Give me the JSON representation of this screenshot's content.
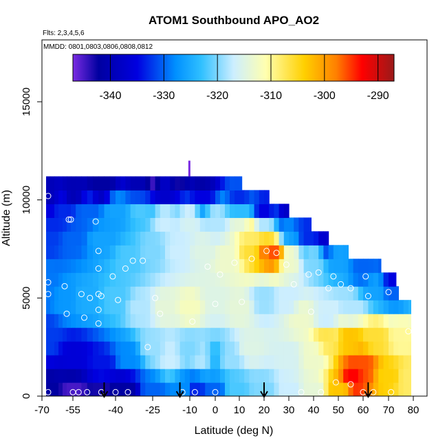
{
  "chart_data": {
    "type": "heatmap",
    "title": "ATOM1 Southbound APO_AO2",
    "annotations": [
      "Flts: 2,3,4,5,6",
      "MMDD: 0801,0803,0806,0808,0812"
    ],
    "xlabel": "Latitude (deg N)",
    "ylabel": "Altitude (m)",
    "xlim": [
      -70,
      80
    ],
    "ylim": [
      0,
      17500
    ],
    "x_ticks": [
      -70,
      -55,
      -40,
      -25,
      -10,
      0,
      10,
      20,
      30,
      40,
      50,
      60,
      70,
      80
    ],
    "x_tick_labels": [
      "-70",
      "-55",
      "-40",
      "-25",
      "-10",
      "0",
      "10",
      "20",
      "30",
      "40",
      "50",
      "60",
      "70",
      "80"
    ],
    "x_tick_labels_drawn_offset": [
      -70,
      -55,
      -40,
      -25,
      -10,
      0,
      10,
      20,
      30,
      40,
      50,
      60,
      70,
      80
    ],
    "y_ticks": [
      0,
      5000,
      10000,
      15000
    ],
    "y_tick_labels": [
      "0",
      "5000",
      "10000",
      "15000"
    ],
    "colorbar": {
      "range": [
        -347,
        -287
      ],
      "ticks": [
        -340,
        -330,
        -320,
        -310,
        -300,
        -290
      ],
      "tick_labels": [
        "-340",
        "-330",
        "-320",
        "-310",
        "-300",
        "-290"
      ]
    },
    "grid": false,
    "legend": "colorbar-top-inside",
    "arrow_latitudes": [
      -44,
      -14,
      20,
      62
    ],
    "observation_points": [
      [
        -67,
        10200
      ],
      [
        -67,
        5800
      ],
      [
        -67,
        5200
      ],
      [
        -67,
        200
      ],
      [
        -59,
        5600
      ],
      [
        -58,
        4200
      ],
      [
        -57,
        9000
      ],
      [
        -56,
        9000
      ],
      [
        -55,
        200
      ],
      [
        -53,
        200
      ],
      [
        -52,
        5200
      ],
      [
        -51,
        4000
      ],
      [
        -50,
        200
      ],
      [
        -49,
        5000
      ],
      [
        -47,
        8900
      ],
      [
        -46,
        7400
      ],
      [
        -46,
        6500
      ],
      [
        -46,
        5200
      ],
      [
        -46,
        4400
      ],
      [
        -46,
        3700
      ],
      [
        -45,
        5100
      ],
      [
        -45,
        200
      ],
      [
        -41,
        6100
      ],
      [
        -40,
        200
      ],
      [
        -39,
        4900
      ],
      [
        -36,
        6500
      ],
      [
        -35,
        200
      ],
      [
        -33,
        6900
      ],
      [
        -29,
        6900
      ],
      [
        -27,
        2500
      ],
      [
        -24,
        5000
      ],
      [
        -22,
        4200
      ],
      [
        -13,
        200
      ],
      [
        -9,
        3800
      ],
      [
        -8,
        200
      ],
      [
        -3,
        6600
      ],
      [
        0,
        200
      ],
      [
        0,
        4700
      ],
      [
        2,
        6200
      ],
      [
        8,
        6800
      ],
      [
        11,
        4800
      ],
      [
        15,
        7000
      ],
      [
        21,
        7400
      ],
      [
        25,
        7300
      ],
      [
        29,
        6700
      ],
      [
        32,
        5700
      ],
      [
        35,
        200
      ],
      [
        38,
        6200
      ],
      [
        39,
        4300
      ],
      [
        42,
        6300
      ],
      [
        43,
        200
      ],
      [
        46,
        5500
      ],
      [
        48,
        6100
      ],
      [
        49,
        700
      ],
      [
        51,
        5700
      ],
      [
        55,
        5500
      ],
      [
        55,
        600
      ],
      [
        60,
        200
      ],
      [
        61,
        6100
      ],
      [
        62,
        5100
      ],
      [
        64,
        200
      ],
      [
        70,
        5300
      ],
      [
        71,
        200
      ],
      [
        78,
        3300
      ]
    ],
    "altitude_band_edges": [
      0,
      700,
      1400,
      2100,
      2800,
      3500,
      4200,
      4900,
      5600,
      6300,
      7000,
      7700,
      8400,
      9100,
      9800,
      10500,
      11200
    ],
    "band_latitude_extent": [
      [
        -68,
        79
      ],
      [
        -68,
        79
      ],
      [
        -68,
        79
      ],
      [
        -68,
        79
      ],
      [
        -68,
        79
      ],
      [
        -68,
        79
      ],
      [
        -68,
        79
      ],
      [
        -68,
        74
      ],
      [
        -68,
        73
      ],
      [
        -68,
        67
      ],
      [
        -68,
        54
      ],
      [
        -68,
        46
      ],
      [
        -68,
        39
      ],
      [
        -68,
        30
      ],
      [
        -68,
        22
      ],
      [
        -68,
        11
      ],
      [
        -59,
        1
      ]
    ],
    "value_field_control_points": [
      [
        -67,
        200,
        -342
      ],
      [
        -55,
        200,
        -345
      ],
      [
        -45,
        200,
        -343
      ],
      [
        -36,
        200,
        -342
      ],
      [
        -25,
        200,
        -330
      ],
      [
        -12,
        300,
        -328
      ],
      [
        -8,
        300,
        -333
      ],
      [
        0,
        300,
        -330
      ],
      [
        8,
        300,
        -322
      ],
      [
        20,
        300,
        -320
      ],
      [
        30,
        300,
        -317
      ],
      [
        40,
        300,
        -314
      ],
      [
        50,
        300,
        -303
      ],
      [
        56,
        1000,
        -293
      ],
      [
        60,
        1500,
        -296
      ],
      [
        70,
        1000,
        -304
      ],
      [
        78,
        800,
        -308
      ],
      [
        -67,
        3000,
        -332
      ],
      [
        -55,
        2000,
        -336
      ],
      [
        -45,
        1500,
        -334
      ],
      [
        -35,
        2000,
        -328
      ],
      [
        -25,
        2500,
        -319
      ],
      [
        -18,
        2000,
        -317
      ],
      [
        -10,
        2500,
        -320
      ],
      [
        -5,
        2000,
        -318
      ],
      [
        0,
        2000,
        -324
      ],
      [
        5,
        2000,
        -319
      ],
      [
        15,
        2500,
        -315
      ],
      [
        30,
        2000,
        -316
      ],
      [
        40,
        2000,
        -313
      ],
      [
        45,
        3000,
        -307
      ],
      [
        55,
        3000,
        -303
      ],
      [
        65,
        3000,
        -306
      ],
      [
        75,
        3000,
        -310
      ],
      [
        -67,
        6000,
        -329
      ],
      [
        -58,
        5000,
        -327
      ],
      [
        -50,
        5000,
        -325
      ],
      [
        -40,
        5000,
        -322
      ],
      [
        -30,
        4500,
        -318
      ],
      [
        -20,
        4500,
        -314
      ],
      [
        -10,
        4500,
        -312
      ],
      [
        0,
        5000,
        -315
      ],
      [
        10,
        4500,
        -314
      ],
      [
        20,
        5000,
        -319
      ],
      [
        30,
        5000,
        -317
      ],
      [
        35,
        4000,
        -313
      ],
      [
        45,
        4000,
        -317
      ],
      [
        55,
        4500,
        -318
      ],
      [
        65,
        5500,
        -326
      ],
      [
        72,
        5500,
        -330
      ],
      [
        -67,
        8000,
        -332
      ],
      [
        -55,
        8000,
        -330
      ],
      [
        -45,
        8000,
        -326
      ],
      [
        -35,
        7000,
        -322
      ],
      [
        -25,
        7500,
        -320
      ],
      [
        -15,
        7500,
        -317
      ],
      [
        -5,
        7500,
        -315
      ],
      [
        5,
        7000,
        -313
      ],
      [
        15,
        7500,
        -306
      ],
      [
        20,
        7500,
        -298
      ],
      [
        24,
        7300,
        -296
      ],
      [
        30,
        7000,
        -313
      ],
      [
        40,
        7000,
        -320
      ],
      [
        50,
        7000,
        -326
      ],
      [
        60,
        6500,
        -330
      ],
      [
        72,
        6000,
        -335
      ],
      [
        -67,
        9800,
        -335
      ],
      [
        -60,
        9500,
        -333
      ],
      [
        -50,
        9500,
        -330
      ],
      [
        -40,
        9500,
        -326
      ],
      [
        -30,
        9500,
        -322
      ],
      [
        -20,
        9000,
        -317
      ],
      [
        -10,
        9000,
        -316
      ],
      [
        0,
        9000,
        -318
      ],
      [
        10,
        9000,
        -314
      ],
      [
        15,
        8300,
        -308
      ],
      [
        20,
        8700,
        -318
      ],
      [
        30,
        8500,
        -327
      ],
      [
        38,
        8300,
        -333
      ],
      [
        45,
        8000,
        -337
      ],
      [
        -67,
        10300,
        -340
      ],
      [
        -55,
        10500,
        -340
      ],
      [
        -45,
        10800,
        -342
      ],
      [
        -30,
        10800,
        -340
      ],
      [
        -20,
        10600,
        -338
      ],
      [
        -5,
        10200,
        -335
      ],
      [
        10,
        9900,
        -333
      ],
      [
        20,
        9500,
        -335
      ],
      [
        30,
        9200,
        -338
      ],
      [
        -25,
        11200,
        -345
      ],
      [
        -15,
        11200,
        -343
      ],
      [
        -5,
        11200,
        -342
      ]
    ]
  }
}
